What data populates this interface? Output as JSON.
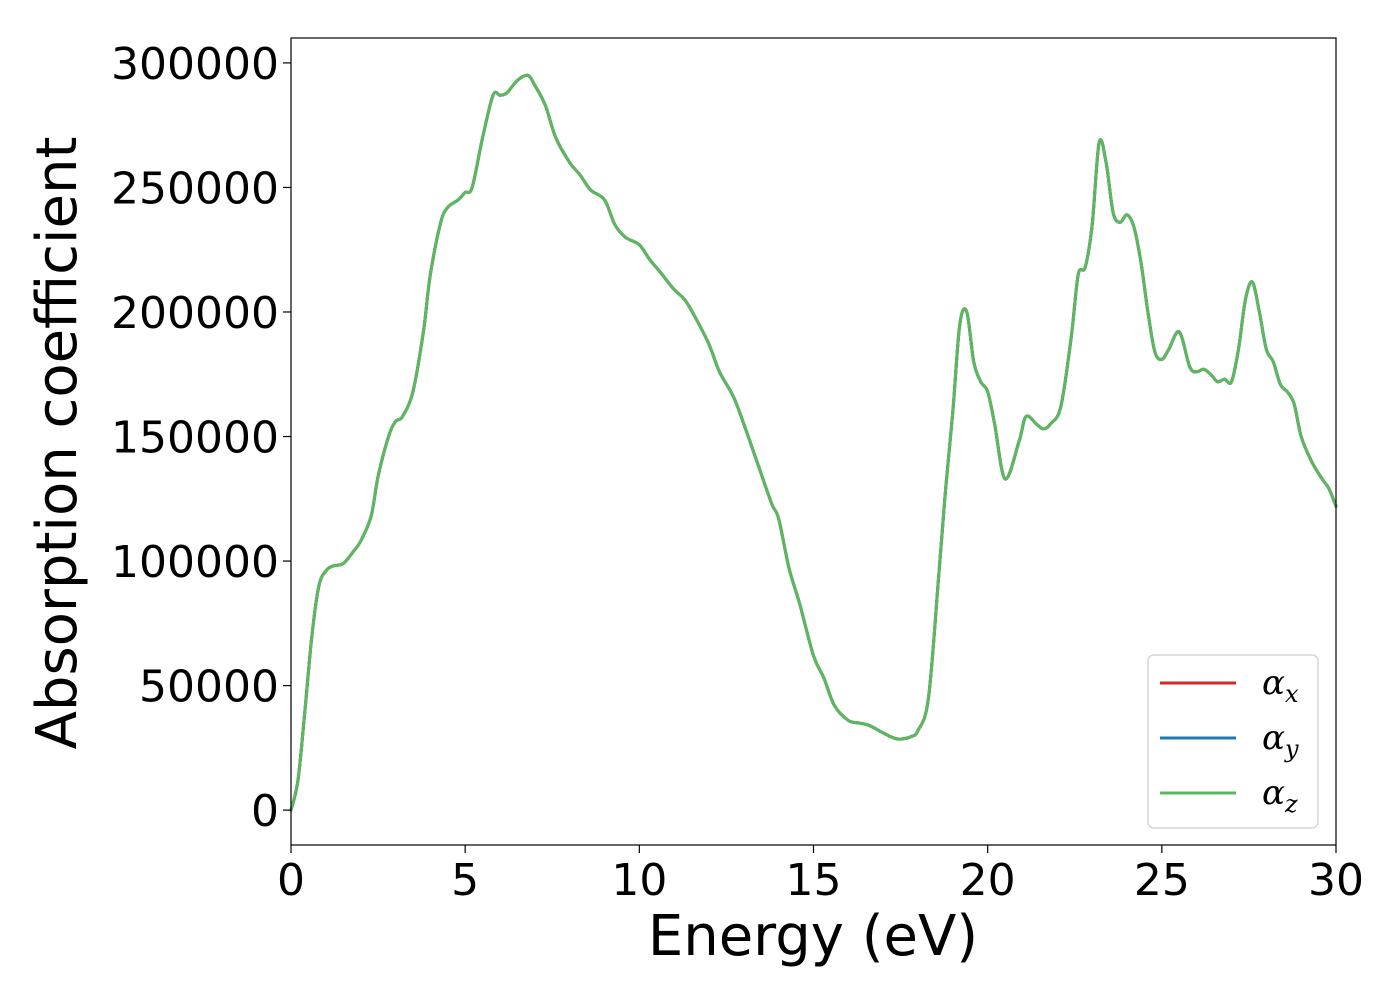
{
  "chart_data": {
    "type": "line",
    "xlabel": "Energy (eV)",
    "ylabel": "Absorption coefficient",
    "xlim": [
      0,
      30
    ],
    "ylim": [
      -14000,
      310000
    ],
    "xticks": [
      0,
      5,
      10,
      15,
      20,
      25,
      30
    ],
    "yticks": [
      0,
      50000,
      100000,
      150000,
      200000,
      250000,
      300000
    ],
    "grid": false,
    "legend_position": "lower-right",
    "x": [
      0,
      0.2,
      0.4,
      0.6,
      0.8,
      1.0,
      1.2,
      1.5,
      1.8,
      2.0,
      2.3,
      2.5,
      2.8,
      3.0,
      3.2,
      3.5,
      3.8,
      4.0,
      4.3,
      4.5,
      4.8,
      5.0,
      5.2,
      5.5,
      5.8,
      6.0,
      6.2,
      6.5,
      6.8,
      7.0,
      7.3,
      7.6,
      8.0,
      8.3,
      8.6,
      9.0,
      9.3,
      9.6,
      10.0,
      10.3,
      10.6,
      11.0,
      11.3,
      11.6,
      12.0,
      12.3,
      12.7,
      13.0,
      13.4,
      13.8,
      14.0,
      14.3,
      14.6,
      15.0,
      15.3,
      15.6,
      16.0,
      16.3,
      16.6,
      17.0,
      17.3,
      17.5,
      17.8,
      18.0,
      18.3,
      18.6,
      18.8,
      19.0,
      19.2,
      19.4,
      19.6,
      19.8,
      20.0,
      20.2,
      20.5,
      20.9,
      21.1,
      21.4,
      21.6,
      21.8,
      22.1,
      22.4,
      22.6,
      22.8,
      23.0,
      23.2,
      23.4,
      23.6,
      23.8,
      24.0,
      24.2,
      24.4,
      24.6,
      24.8,
      25.0,
      25.2,
      25.5,
      25.8,
      26.0,
      26.2,
      26.4,
      26.6,
      26.8,
      27.0,
      27.2,
      27.4,
      27.6,
      27.8,
      28.0,
      28.2,
      28.4,
      28.6,
      28.8,
      29.0,
      29.3,
      29.6,
      29.8,
      30.0
    ],
    "series": [
      {
        "name": "α_x",
        "color": "#d62728",
        "values": [
          0,
          12000,
          40000,
          70000,
          90000,
          96000,
          98000,
          99000,
          104000,
          108000,
          118000,
          134000,
          150000,
          156000,
          158000,
          168000,
          192000,
          215000,
          236000,
          242000,
          245000,
          248000,
          250000,
          270000,
          287000,
          287000,
          288000,
          293000,
          295000,
          291000,
          283000,
          270000,
          260000,
          255000,
          249000,
          245000,
          235000,
          230000,
          227000,
          221000,
          216000,
          209000,
          205000,
          198000,
          187000,
          176000,
          166000,
          155000,
          139000,
          123000,
          117000,
          97000,
          83000,
          62000,
          53000,
          42000,
          36000,
          35000,
          34000,
          31000,
          29000,
          28500,
          29500,
          32000,
          45000,
          95000,
          130000,
          160000,
          195000,
          200000,
          180000,
          172000,
          168000,
          155000,
          133000,
          148000,
          158000,
          155000,
          153000,
          155000,
          162000,
          190000,
          215000,
          218000,
          235000,
          268000,
          260000,
          240000,
          236000,
          239000,
          234000,
          220000,
          200000,
          184000,
          181000,
          185000,
          192000,
          178000,
          176000,
          177000,
          175000,
          172000,
          173000,
          172000,
          185000,
          205000,
          212000,
          200000,
          185000,
          180000,
          171000,
          168000,
          163000,
          150000,
          140000,
          133000,
          129000,
          122000
        ]
      },
      {
        "name": "α_y",
        "color": "#1f77b4",
        "values": [
          0,
          12000,
          40000,
          70000,
          90000,
          96000,
          98000,
          99000,
          104000,
          108000,
          118000,
          134000,
          150000,
          156000,
          158000,
          168000,
          192000,
          215000,
          236000,
          242000,
          245000,
          248000,
          250000,
          270000,
          287000,
          287000,
          288000,
          293000,
          295000,
          291000,
          283000,
          270000,
          260000,
          255000,
          249000,
          245000,
          235000,
          230000,
          227000,
          221000,
          216000,
          209000,
          205000,
          198000,
          187000,
          176000,
          166000,
          155000,
          139000,
          123000,
          117000,
          97000,
          83000,
          62000,
          53000,
          42000,
          36000,
          35000,
          34000,
          31000,
          29000,
          28500,
          29500,
          32000,
          45000,
          95000,
          130000,
          160000,
          195000,
          200000,
          180000,
          172000,
          168000,
          155000,
          133000,
          148000,
          158000,
          155000,
          153000,
          155000,
          162000,
          190000,
          215000,
          218000,
          235000,
          268000,
          260000,
          240000,
          236000,
          239000,
          234000,
          220000,
          200000,
          184000,
          181000,
          185000,
          192000,
          178000,
          176000,
          177000,
          175000,
          172000,
          173000,
          172000,
          185000,
          205000,
          212000,
          200000,
          185000,
          180000,
          171000,
          168000,
          163000,
          150000,
          140000,
          133000,
          129000,
          122000
        ]
      },
      {
        "name": "α_z",
        "color": "#5cb85c",
        "values": [
          0,
          12000,
          40000,
          70000,
          90000,
          96000,
          98000,
          99000,
          104000,
          108000,
          118000,
          134000,
          150000,
          156000,
          158000,
          168000,
          192000,
          215000,
          236000,
          242000,
          245000,
          248000,
          250000,
          270000,
          287000,
          287000,
          288000,
          293000,
          295000,
          291000,
          283000,
          270000,
          260000,
          255000,
          249000,
          245000,
          235000,
          230000,
          227000,
          221000,
          216000,
          209000,
          205000,
          198000,
          187000,
          176000,
          166000,
          155000,
          139000,
          123000,
          117000,
          97000,
          83000,
          62000,
          53000,
          42000,
          36000,
          35000,
          34000,
          31000,
          29000,
          28500,
          29500,
          32000,
          45000,
          95000,
          130000,
          160000,
          195000,
          200000,
          180000,
          172000,
          168000,
          155000,
          133000,
          148000,
          158000,
          155000,
          153000,
          155000,
          162000,
          190000,
          215000,
          218000,
          235000,
          268000,
          260000,
          240000,
          236000,
          239000,
          234000,
          220000,
          200000,
          184000,
          181000,
          185000,
          192000,
          178000,
          176000,
          177000,
          175000,
          172000,
          173000,
          172000,
          185000,
          205000,
          212000,
          200000,
          185000,
          180000,
          171000,
          168000,
          163000,
          150000,
          140000,
          133000,
          129000,
          122000
        ]
      }
    ]
  },
  "legend": {
    "items": [
      {
        "symbol": "α",
        "sub": "x"
      },
      {
        "symbol": "α",
        "sub": "y"
      },
      {
        "symbol": "α",
        "sub": "z"
      }
    ]
  }
}
